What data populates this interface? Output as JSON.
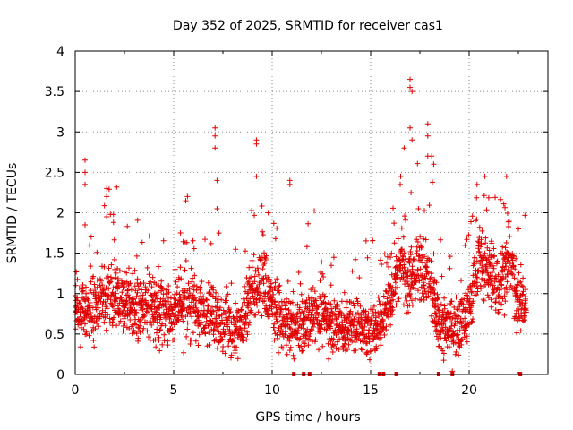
{
  "chart_data": {
    "type": "scatter",
    "title": "Day 352 of 2025, SRMTID for receiver cas1",
    "xlabel": "GPS time / hours",
    "ylabel": "SRMTID / TECUs",
    "xlim": [
      0,
      24
    ],
    "ylim": [
      0,
      4
    ],
    "x_ticks": [
      0,
      5,
      10,
      15,
      20
    ],
    "y_ticks": [
      0,
      0.5,
      1,
      1.5,
      2,
      2.5,
      3,
      3.5,
      4
    ],
    "y_tick_labels": [
      "0",
      "0.5",
      "1",
      "1.5",
      "2",
      "2.5",
      "3",
      "3.5",
      "4"
    ],
    "grid": true,
    "marker": "+",
    "color": "#e00000",
    "baseline_band": [
      [
        0.0,
        0.8
      ],
      [
        0.5,
        0.85
      ],
      [
        1.0,
        0.8
      ],
      [
        1.5,
        0.95
      ],
      [
        2.0,
        0.95
      ],
      [
        2.5,
        0.9
      ],
      [
        3.0,
        0.85
      ],
      [
        3.5,
        0.8
      ],
      [
        4.0,
        0.85
      ],
      [
        4.5,
        0.8
      ],
      [
        5.0,
        0.75
      ],
      [
        5.5,
        0.8
      ],
      [
        6.0,
        0.85
      ],
      [
        6.5,
        0.75
      ],
      [
        7.0,
        0.75
      ],
      [
        7.5,
        0.6
      ],
      [
        8.0,
        0.55
      ],
      [
        8.5,
        0.7
      ],
      [
        9.0,
        1.0
      ],
      [
        9.5,
        1.15
      ],
      [
        10.0,
        0.85
      ],
      [
        10.5,
        0.7
      ],
      [
        11.0,
        0.55
      ],
      [
        11.5,
        0.6
      ],
      [
        12.0,
        0.75
      ],
      [
        12.5,
        0.75
      ],
      [
        13.0,
        0.65
      ],
      [
        13.5,
        0.6
      ],
      [
        14.0,
        0.6
      ],
      [
        14.5,
        0.6
      ],
      [
        15.0,
        0.55
      ],
      [
        15.5,
        0.65
      ],
      [
        16.0,
        0.95
      ],
      [
        16.5,
        1.4
      ],
      [
        17.0,
        1.2
      ],
      [
        17.5,
        1.35
      ],
      [
        18.0,
        1.1
      ],
      [
        18.5,
        0.6
      ],
      [
        19.0,
        0.6
      ],
      [
        19.5,
        0.6
      ],
      [
        20.0,
        0.8
      ],
      [
        20.5,
        1.4
      ],
      [
        21.0,
        1.3
      ],
      [
        21.5,
        1.1
      ],
      [
        22.0,
        1.4
      ],
      [
        22.5,
        0.9
      ],
      [
        22.9,
        0.9
      ]
    ],
    "spikes": [
      [
        0.5,
        2.65
      ],
      [
        0.5,
        2.5
      ],
      [
        0.5,
        2.35
      ],
      [
        0.5,
        1.85
      ],
      [
        1.6,
        2.3
      ],
      [
        1.6,
        2.2
      ],
      [
        1.6,
        1.95
      ],
      [
        5.7,
        2.2
      ],
      [
        7.1,
        3.05
      ],
      [
        7.1,
        2.95
      ],
      [
        7.1,
        2.8
      ],
      [
        7.2,
        2.4
      ],
      [
        7.2,
        2.05
      ],
      [
        7.3,
        1.75
      ],
      [
        9.2,
        2.9
      ],
      [
        9.2,
        2.85
      ],
      [
        9.2,
        2.45
      ],
      [
        9.8,
        2.0
      ],
      [
        10.9,
        2.4
      ],
      [
        10.9,
        2.35
      ],
      [
        16.5,
        2.35
      ],
      [
        16.7,
        2.8
      ],
      [
        17.0,
        3.65
      ],
      [
        17.0,
        3.55
      ],
      [
        17.1,
        3.5
      ],
      [
        17.1,
        2.9
      ],
      [
        17.0,
        3.05
      ],
      [
        17.9,
        3.1
      ],
      [
        17.9,
        2.95
      ],
      [
        17.9,
        2.7
      ],
      [
        18.1,
        2.7
      ],
      [
        18.2,
        2.6
      ],
      [
        20.4,
        2.35
      ],
      [
        20.8,
        2.45
      ],
      [
        21.9,
        2.45
      ],
      [
        22.5,
        1.8
      ],
      [
        16.0,
        1.45
      ],
      [
        13.0,
        1.35
      ]
    ],
    "data_gaps_hours": [
      11.1,
      11.6,
      11.9,
      15.45,
      15.65,
      16.3,
      18.45,
      19.15,
      22.6
    ]
  }
}
